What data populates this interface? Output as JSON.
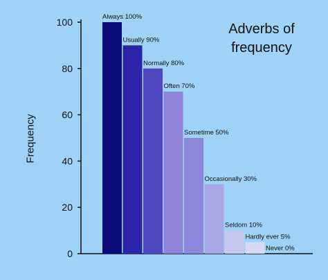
{
  "chart_data": {
    "type": "bar",
    "title": [
      "Adverbs of",
      "frequency"
    ],
    "ylabel": "Frequency",
    "xlabel": "",
    "ylim": [
      0,
      100
    ],
    "yticks": [
      0,
      20,
      40,
      60,
      80,
      100
    ],
    "grid": false,
    "categories": [
      "Always",
      "Usually",
      "Normally",
      "Often",
      "Sometime",
      "Occasionally",
      "Seldom",
      "Hardly ever",
      "Never"
    ],
    "values": [
      100,
      90,
      80,
      70,
      50,
      30,
      10,
      5,
      0
    ],
    "data_labels": [
      "Always 100%",
      "Usually 90%",
      "Normally 80%",
      "Often 70%",
      "Sometime 50%",
      "Occasionally 30%",
      "Seldom 10%",
      "Hardly ever 5%",
      "Never 0%"
    ],
    "colors": [
      "#0a0a78",
      "#2a25a8",
      "#4e47c0",
      "#8e83d6",
      "#8d89da",
      "#a9a8e5",
      "#c6c8f0",
      "#d6d9f5",
      "#e6e9f8"
    ]
  }
}
